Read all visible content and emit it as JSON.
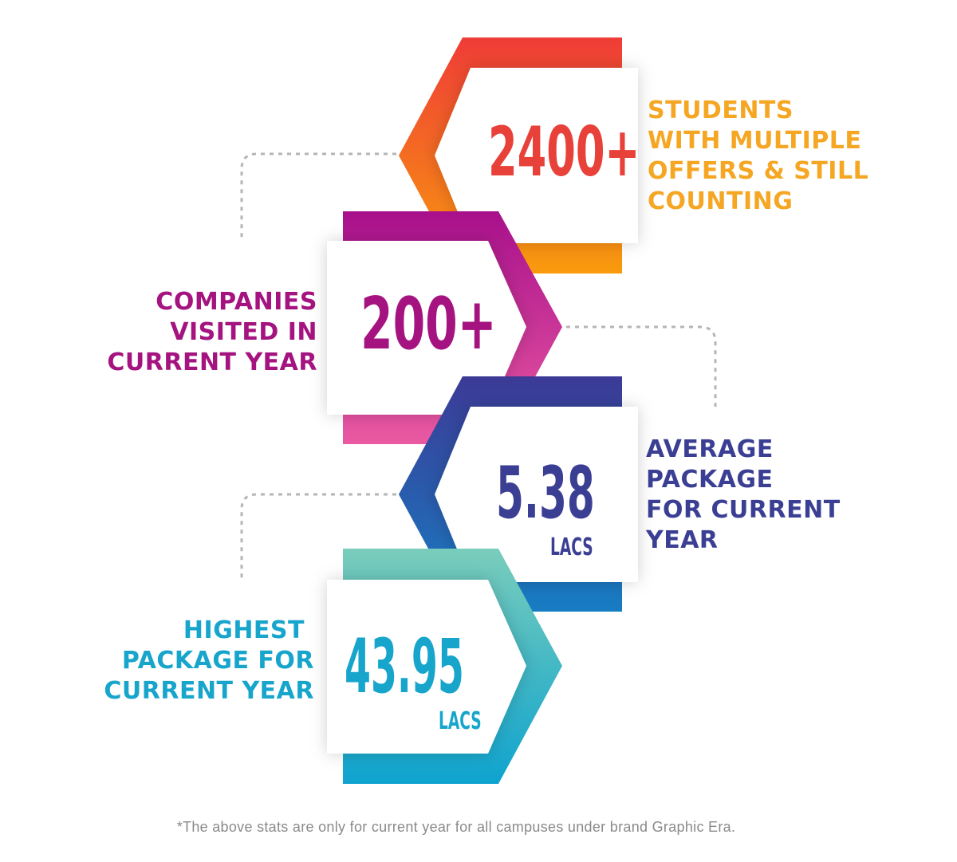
{
  "stats": [
    {
      "value": "2400+",
      "unit": "",
      "label_lines": [
        "STUDENTS",
        "WITH MULTIPLE",
        "OFFERS & STILL",
        "COUNTING"
      ],
      "value_color": "#e8413a",
      "label_color": "#f5a623"
    },
    {
      "value": "200+",
      "unit": "",
      "label_lines": [
        "COMPANIES",
        "VISITED IN",
        "CURRENT YEAR"
      ],
      "value_color": "#a4137f",
      "label_color": "#a4137f"
    },
    {
      "value": "5.38",
      "unit": "LACS",
      "label_lines": [
        "AVERAGE",
        "PACKAGE",
        "FOR CURRENT",
        "YEAR"
      ],
      "value_color": "#3b3f94",
      "label_color": "#3b3f94"
    },
    {
      "value": "43.95",
      "unit": "LACS",
      "label_lines": [
        "HIGHEST",
        "PACKAGE FOR",
        "CURRENT YEAR"
      ],
      "value_color": "#17a5cc",
      "label_color": "#17a5cc"
    }
  ],
  "footnote": "*The above stats are only for current year for all campuses under brand Graphic Era.",
  "colors": {
    "hex1_top": "#ef3c37",
    "hex1_bottom": "#f99b0d",
    "hex2_top": "#a8108c",
    "hex2_bottom": "#ea5aa2",
    "hex3_top": "#3c3a96",
    "hex3_bottom": "#177dc3",
    "hex4_top": "#7acdbb",
    "hex4_bottom": "#0ea3cf",
    "connector": "#b5b5b5"
  }
}
